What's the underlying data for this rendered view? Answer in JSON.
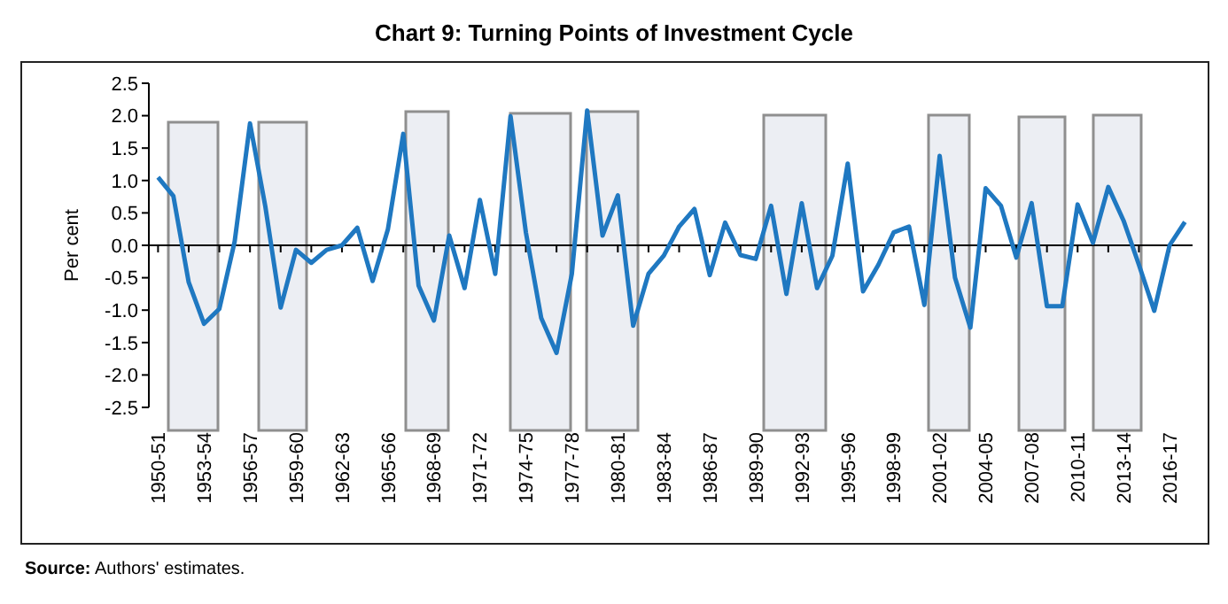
{
  "chart_data": {
    "type": "line",
    "title": "Chart 9: Turning Points of Investment Cycle",
    "ylabel": "Per cent",
    "categories": [
      "1950-51",
      null,
      null,
      "1953-54",
      null,
      null,
      "1956-57",
      null,
      null,
      "1959-60",
      null,
      null,
      "1962-63",
      null,
      null,
      "1965-66",
      null,
      null,
      "1968-69",
      null,
      null,
      "1971-72",
      null,
      null,
      "1974-75",
      null,
      null,
      "1977-78",
      null,
      null,
      "1980-81",
      null,
      null,
      "1983-84",
      null,
      null,
      "1986-87",
      null,
      null,
      "1989-90",
      null,
      null,
      "1992-93",
      null,
      null,
      "1995-96",
      null,
      null,
      "1998-99",
      null,
      null,
      "2001-02",
      null,
      null,
      "2004-05",
      null,
      null,
      "2007-08",
      null,
      null,
      "2010-11",
      null,
      null,
      "2013-14",
      null,
      null,
      "2016-17",
      null
    ],
    "series": [
      {
        "color": "#1f78c1",
        "values": [
          1.05,
          0.76,
          -0.57,
          -1.21,
          -0.98,
          0.06,
          1.88,
          0.6,
          -0.96,
          -0.07,
          -0.27,
          -0.07,
          0.0,
          0.27,
          -0.55,
          0.25,
          1.72,
          -0.62,
          -1.16,
          0.15,
          -0.66,
          0.7,
          -0.44,
          1.99,
          0.2,
          -1.12,
          -1.66,
          -0.44,
          2.08,
          0.15,
          0.77,
          -1.24,
          -0.44,
          -0.16,
          0.29,
          0.56,
          -0.46,
          0.35,
          -0.15,
          -0.21,
          0.61,
          -0.75,
          0.65,
          -0.66,
          -0.16,
          1.26,
          -0.71,
          -0.3,
          0.2,
          0.29,
          -0.92,
          1.38,
          -0.5,
          -1.27,
          0.88,
          0.61,
          -0.19,
          0.65,
          -0.94,
          -0.94,
          0.63,
          0.04,
          0.9,
          0.38,
          -0.3,
          -1.01,
          0.0,
          0.36
        ]
      }
    ],
    "ylim": [
      -2.5,
      2.5
    ],
    "yticks": [
      {
        "value": -2.5,
        "label": "-2.5"
      },
      {
        "value": -2,
        "label": "-2.0"
      },
      {
        "value": -1.5,
        "label": "-1.5"
      },
      {
        "value": -1,
        "label": "-1.0"
      },
      {
        "value": -0.5,
        "label": "-0.5"
      },
      {
        "value": 0,
        "label": "0.0"
      },
      {
        "value": 0.5,
        "label": "0.5"
      },
      {
        "value": 1,
        "label": "1.0"
      },
      {
        "value": 1.5,
        "label": "1.5"
      },
      {
        "value": 2,
        "label": "2.0"
      },
      {
        "value": 2.5,
        "label": "2.5"
      }
    ],
    "marker": "none",
    "line_style": "solid",
    "annotations": [
      "Source: Authors' estimates."
    ]
  }
}
